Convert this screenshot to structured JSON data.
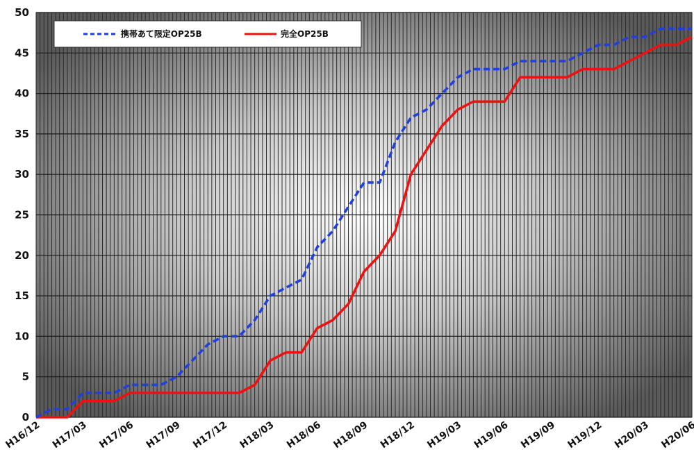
{
  "chart_data": {
    "type": "line",
    "xlabel": "",
    "ylabel": "",
    "ylim": [
      0,
      50
    ],
    "yticks": [
      0,
      5,
      10,
      15,
      20,
      25,
      30,
      35,
      40,
      45,
      50
    ],
    "grid": true,
    "legend_position": "top-left",
    "x": [
      "H16/12",
      "H17/01",
      "H17/02",
      "H17/03",
      "H17/04",
      "H17/05",
      "H17/06",
      "H17/07",
      "H17/08",
      "H17/09",
      "H17/10",
      "H17/11",
      "H17/12",
      "H18/01",
      "H18/02",
      "H18/03",
      "H18/04",
      "H18/05",
      "H18/06",
      "H18/07",
      "H18/08",
      "H18/09",
      "H18/10",
      "H18/11",
      "H18/12",
      "H19/01",
      "H19/02",
      "H19/03",
      "H19/04",
      "H19/05",
      "H19/06",
      "H19/07",
      "H19/08",
      "H19/09",
      "H19/10",
      "H19/11",
      "H19/12",
      "H20/01",
      "H20/02",
      "H20/03",
      "H20/04",
      "H20/05",
      "H20/06"
    ],
    "xtick_labels": [
      "H16/12",
      "H17/03",
      "H17/06",
      "H17/09",
      "H17/12",
      "H18/03",
      "H18/06",
      "H18/09",
      "H18/12",
      "H19/03",
      "H19/06",
      "H19/09",
      "H19/12",
      "H20/03",
      "H20/06"
    ],
    "series": [
      {
        "name": "携帯あて限定OP25B",
        "color": "#1f3fe0",
        "style": "dashed",
        "values": [
          0,
          1,
          1,
          3,
          3,
          3,
          4,
          4,
          4,
          5,
          7,
          9,
          10,
          10,
          12,
          15,
          16,
          17,
          21,
          23,
          26,
          29,
          29,
          34,
          37,
          38,
          40,
          42,
          43,
          43,
          43,
          44,
          44,
          44,
          44,
          45,
          46,
          46,
          47,
          47,
          48,
          48,
          48
        ]
      },
      {
        "name": "完全OP25B",
        "color": "#ee1111",
        "style": "solid",
        "values": [
          0,
          0,
          0,
          2,
          2,
          2,
          3,
          3,
          3,
          3,
          3,
          3,
          3,
          3,
          4,
          7,
          8,
          8,
          11,
          12,
          14,
          18,
          20,
          23,
          30,
          33,
          36,
          38,
          39,
          39,
          39,
          42,
          42,
          42,
          42,
          43,
          43,
          43,
          44,
          45,
          46,
          46,
          47
        ]
      }
    ]
  }
}
